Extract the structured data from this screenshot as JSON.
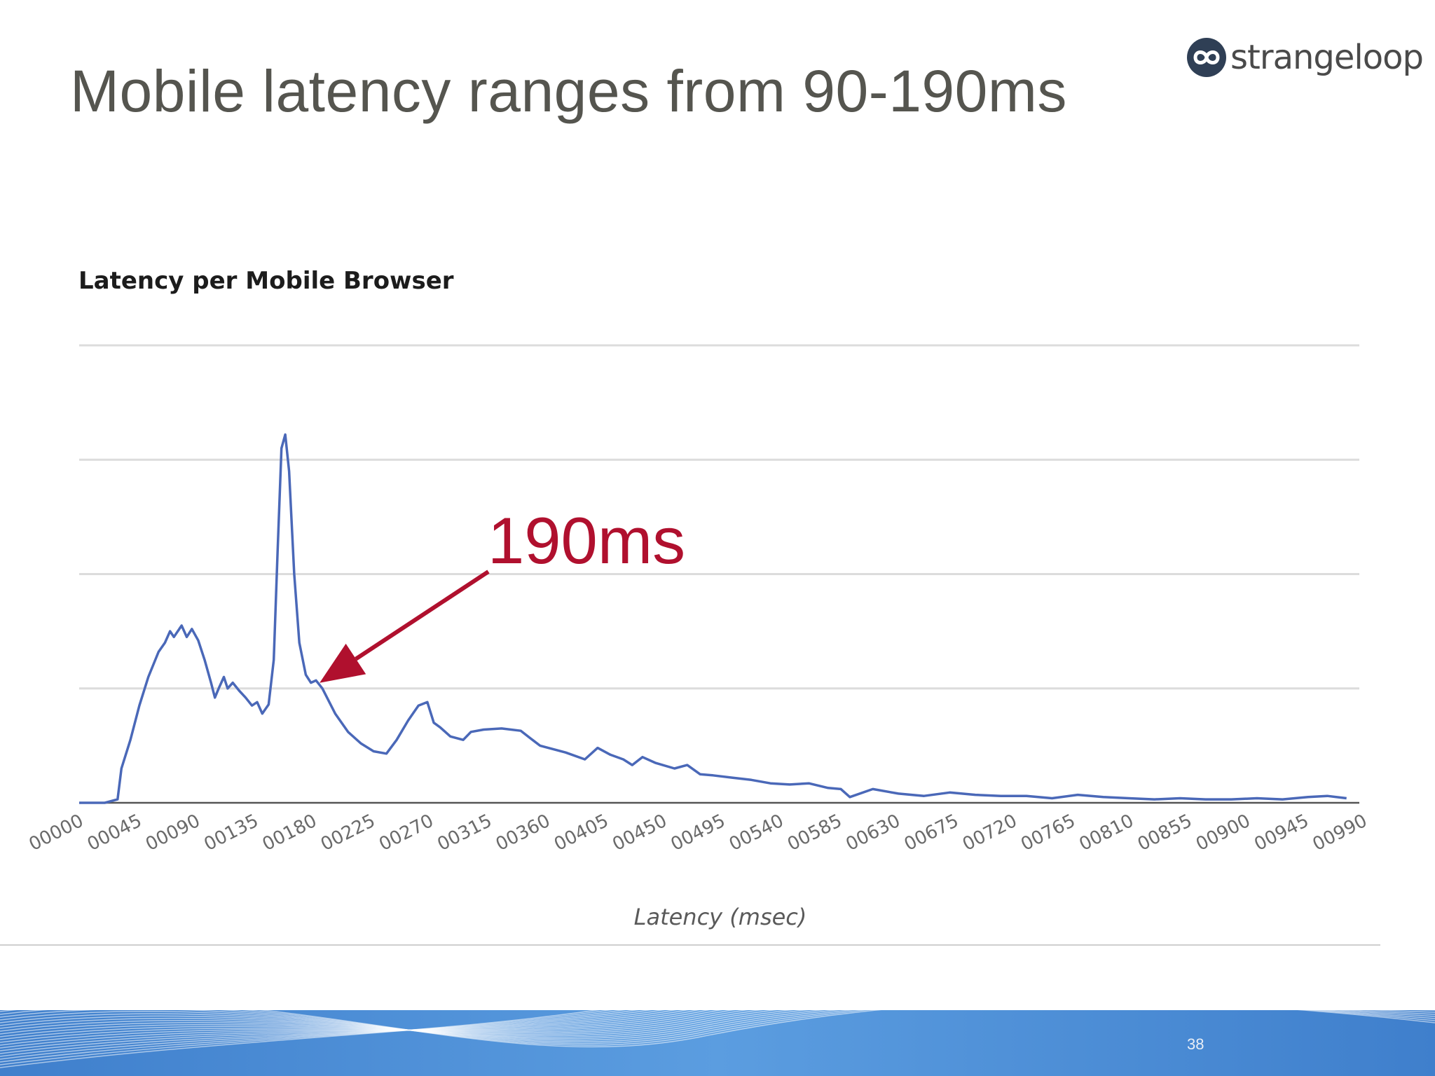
{
  "slide": {
    "title": "Mobile latency ranges from 90-190ms",
    "brand": "strangeloop",
    "page_number": "38"
  },
  "colors": {
    "line": "#4a68b8",
    "annotation": "#b0102e",
    "grid": "#dcdcdc",
    "baseline": "#555555",
    "footer_blue": "#4f90d6"
  },
  "icons": {
    "logo": "infinity-loop-icon",
    "annotation_arrow": "arrow-icon"
  },
  "chart_data": {
    "type": "line",
    "title": "Latency per Mobile Browser",
    "xlabel": "Latency (msec)",
    "ylabel": "",
    "xlim": [
      0,
      1000
    ],
    "ylim": [
      0,
      4
    ],
    "grid": true,
    "categories": [
      "00000",
      "00045",
      "00090",
      "00135",
      "00180",
      "00225",
      "00270",
      "00315",
      "00360",
      "00405",
      "00450",
      "00495",
      "00540",
      "00585",
      "00630",
      "00675",
      "00720",
      "00765",
      "00810",
      "00855",
      "00900",
      "00945",
      "00990"
    ],
    "series": [
      {
        "name": "",
        "points": [
          [
            0,
            0
          ],
          [
            20,
            0
          ],
          [
            30,
            0.03
          ],
          [
            33,
            0.3
          ],
          [
            40,
            0.55
          ],
          [
            47,
            0.85
          ],
          [
            54,
            1.1
          ],
          [
            62,
            1.32
          ],
          [
            67,
            1.4
          ],
          [
            71,
            1.5
          ],
          [
            74,
            1.45
          ],
          [
            77,
            1.5
          ],
          [
            80,
            1.55
          ],
          [
            84,
            1.45
          ],
          [
            88,
            1.52
          ],
          [
            93,
            1.42
          ],
          [
            98,
            1.25
          ],
          [
            103,
            1.05
          ],
          [
            106,
            0.92
          ],
          [
            109,
            1.0
          ],
          [
            113,
            1.1
          ],
          [
            116,
            1.0
          ],
          [
            120,
            1.05
          ],
          [
            125,
            0.98
          ],
          [
            130,
            0.92
          ],
          [
            135,
            0.85
          ],
          [
            139,
            0.88
          ],
          [
            143,
            0.78
          ],
          [
            148,
            0.86
          ],
          [
            152,
            1.25
          ],
          [
            155,
            2.2
          ],
          [
            158,
            3.1
          ],
          [
            161,
            3.22
          ],
          [
            164,
            2.9
          ],
          [
            168,
            2.0
          ],
          [
            172,
            1.4
          ],
          [
            177,
            1.12
          ],
          [
            181,
            1.05
          ],
          [
            185,
            1.07
          ],
          [
            190,
            1.0
          ],
          [
            200,
            0.78
          ],
          [
            210,
            0.62
          ],
          [
            220,
            0.52
          ],
          [
            230,
            0.45
          ],
          [
            240,
            0.43
          ],
          [
            248,
            0.55
          ],
          [
            257,
            0.72
          ],
          [
            265,
            0.85
          ],
          [
            272,
            0.88
          ],
          [
            277,
            0.7
          ],
          [
            282,
            0.66
          ],
          [
            290,
            0.58
          ],
          [
            300,
            0.55
          ],
          [
            306,
            0.62
          ],
          [
            316,
            0.64
          ],
          [
            330,
            0.65
          ],
          [
            345,
            0.63
          ],
          [
            353,
            0.56
          ],
          [
            360,
            0.5
          ],
          [
            380,
            0.44
          ],
          [
            395,
            0.38
          ],
          [
            405,
            0.48
          ],
          [
            415,
            0.42
          ],
          [
            425,
            0.38
          ],
          [
            432,
            0.33
          ],
          [
            440,
            0.4
          ],
          [
            450,
            0.35
          ],
          [
            465,
            0.3
          ],
          [
            475,
            0.33
          ],
          [
            485,
            0.25
          ],
          [
            495,
            0.24
          ],
          [
            510,
            0.22
          ],
          [
            525,
            0.2
          ],
          [
            540,
            0.17
          ],
          [
            555,
            0.16
          ],
          [
            570,
            0.17
          ],
          [
            585,
            0.13
          ],
          [
            595,
            0.12
          ],
          [
            602,
            0.05
          ],
          [
            620,
            0.12
          ],
          [
            640,
            0.08
          ],
          [
            660,
            0.06
          ],
          [
            680,
            0.09
          ],
          [
            700,
            0.07
          ],
          [
            720,
            0.06
          ],
          [
            740,
            0.06
          ],
          [
            760,
            0.04
          ],
          [
            780,
            0.07
          ],
          [
            800,
            0.05
          ],
          [
            820,
            0.04
          ],
          [
            840,
            0.03
          ],
          [
            860,
            0.04
          ],
          [
            880,
            0.03
          ],
          [
            900,
            0.03
          ],
          [
            920,
            0.04
          ],
          [
            940,
            0.03
          ],
          [
            960,
            0.05
          ],
          [
            975,
            0.06
          ],
          [
            990,
            0.04
          ]
        ]
      }
    ],
    "annotations": [
      {
        "text": "190ms",
        "x": 190,
        "y": 1.0
      }
    ]
  }
}
